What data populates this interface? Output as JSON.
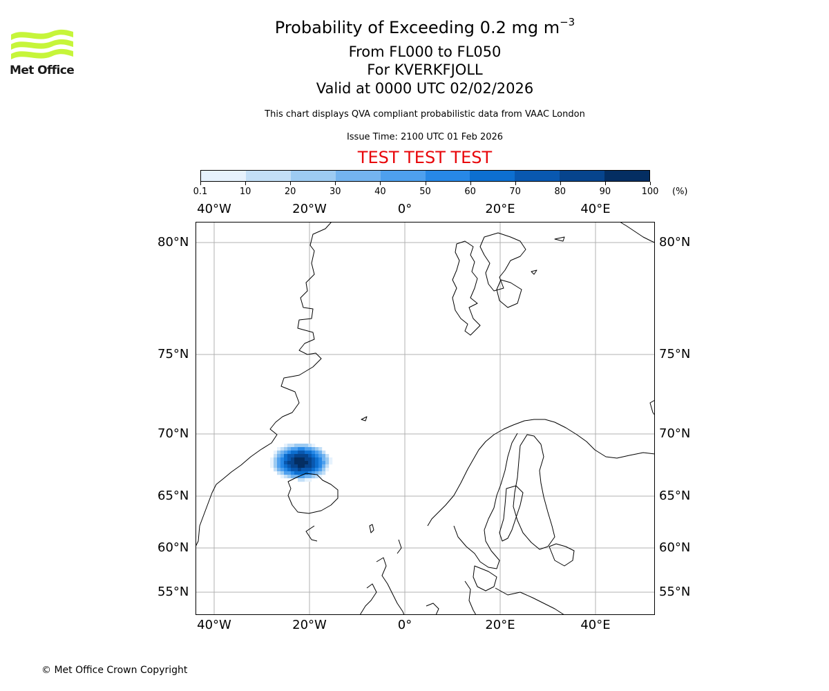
{
  "header": {
    "title_main": "Probability of Exceeding 0.2 mg m",
    "title_sup": "−3",
    "levels": "From FL000 to FL050",
    "volcano": "For KVERKFJOLL",
    "valid": "Valid at 0000 UTC 02/02/2026",
    "disclaimer": "This chart displays QVA compliant probabilistic data from VAAC London",
    "issue": "Issue Time: 2100 UTC 01 Feb 2026",
    "test_banner": "TEST TEST TEST"
  },
  "logo": {
    "text": "Met Office",
    "color": "#c6f53a"
  },
  "colorbar": {
    "ticks": [
      "0.1",
      "10",
      "20",
      "30",
      "40",
      "50",
      "60",
      "70",
      "80",
      "90",
      "100"
    ],
    "unit": "(%)",
    "colors": [
      "#e6f2fd",
      "#c3dff7",
      "#9dcbf2",
      "#74b4ef",
      "#4ea0ee",
      "#2788e6",
      "#0d6fd0",
      "#0958b0",
      "#06448d",
      "#042e62"
    ]
  },
  "axes": {
    "lon_labels": [
      "40°W",
      "20°W",
      "0°",
      "20°E",
      "40°E"
    ],
    "lon_values": [
      -40,
      -20,
      0,
      20,
      40
    ],
    "lat_labels": [
      "80°N",
      "75°N",
      "70°N",
      "65°N",
      "60°N",
      "55°N"
    ],
    "lat_values": [
      80,
      75,
      70,
      65,
      60,
      55
    ],
    "lon_range": [
      -44,
      52
    ],
    "lat_range": [
      53,
      81
    ]
  },
  "plume": {
    "description_value_units": "percent probability",
    "peak_probability": 95
  },
  "footer": {
    "copyright": "© Met Office Crown Copyright"
  }
}
